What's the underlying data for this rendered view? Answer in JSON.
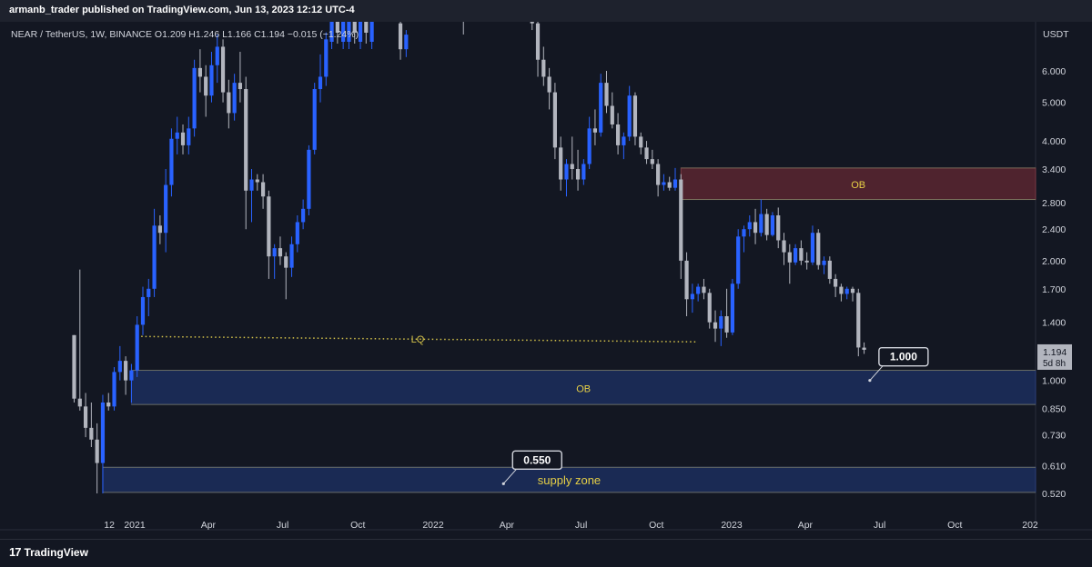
{
  "header": {
    "published": "armanb_trader published on TradingView.com, Jun 13, 2023 12:12 UTC-4"
  },
  "symbol_line": "NEAR / TetherUS, 1W, BINANCE  O1.209  H1.246  L1.166  C1.194  −0.015 (−1.24%)",
  "footer": {
    "logo_mark": "17",
    "logo_text": "TradingView"
  },
  "colors": {
    "up": "#2962ff",
    "down": "#b2b5be",
    "background": "#131722",
    "ob_red": "#5a2630",
    "ob_blue": "#1c2c5a",
    "lq": "#d4c24a"
  },
  "chart_data": {
    "type": "candlestick",
    "symbol": "NEAR / TetherUS",
    "interval": "1W",
    "exchange": "BINANCE",
    "scale": "log",
    "currency": "USDT",
    "ylim": [
      0.47,
      7.6
    ],
    "y_ticks": [
      "6.000",
      "5.000",
      "4.000",
      "3.400",
      "2.800",
      "2.400",
      "2.000",
      "1.700",
      "1.400",
      "1.000",
      "0.850",
      "0.730",
      "0.610",
      "0.520"
    ],
    "y_tick_values": [
      6,
      5,
      4,
      3.4,
      2.8,
      2.4,
      2,
      1.7,
      1.4,
      1.0,
      0.85,
      0.73,
      0.61,
      0.52
    ],
    "x_ticks": [
      "12",
      "2021",
      "Apr",
      "Jul",
      "Oct",
      "2022",
      "Apr",
      "Jul",
      "Oct",
      "2023",
      "Apr",
      "Jul",
      "Oct",
      "202"
    ],
    "x_tick_dates": [
      "2020-12-01",
      "2021-01-01",
      "2021-04-01",
      "2021-07-01",
      "2021-10-01",
      "2022-01-01",
      "2022-04-01",
      "2022-07-01",
      "2022-10-01",
      "2023-01-01",
      "2023-04-01",
      "2023-07-01",
      "2023-10-01",
      "2024-01-01"
    ],
    "currency_label": "USDT",
    "last_price": {
      "value": 1.194,
      "label": "1.194",
      "countdown": "5d 8h"
    },
    "zones": [
      {
        "label": "OB",
        "from": 2.85,
        "to": 3.42,
        "start": "2022-10-31",
        "color": "red"
      },
      {
        "label": "OB",
        "from": 0.87,
        "to": 1.06,
        "start": "2020-12-28",
        "color": "blue"
      },
      {
        "label": "supply zone",
        "from": 0.523,
        "to": 0.605,
        "start": "2020-11-23",
        "color": "blue"
      }
    ],
    "lines": [
      {
        "label": "LQ",
        "from_date": "2021-01-04",
        "from_price": 1.29,
        "to_date": "2022-11-21",
        "to_price": 1.25,
        "style": "dotted"
      }
    ],
    "callouts": [
      {
        "label": "1.000",
        "date": "2023-06-19",
        "price": 1.0
      },
      {
        "label": "0.550",
        "date": "2022-03-28",
        "price": 0.55
      }
    ],
    "candles": [
      {
        "t": "2020-10-19",
        "o": 1.3,
        "h": 1.3,
        "l": 0.88,
        "c": 0.9
      },
      {
        "t": "2020-10-26",
        "o": 0.9,
        "h": 1.9,
        "l": 0.84,
        "c": 0.86
      },
      {
        "t": "2020-11-02",
        "o": 0.86,
        "h": 0.93,
        "l": 0.72,
        "c": 0.76
      },
      {
        "t": "2020-11-09",
        "o": 0.76,
        "h": 0.88,
        "l": 0.68,
        "c": 0.71
      },
      {
        "t": "2020-11-16",
        "o": 0.71,
        "h": 0.78,
        "l": 0.52,
        "c": 0.62
      },
      {
        "t": "2020-11-23",
        "o": 0.62,
        "h": 0.92,
        "l": 0.52,
        "c": 0.88
      },
      {
        "t": "2020-11-30",
        "o": 0.88,
        "h": 0.93,
        "l": 0.84,
        "c": 0.86
      },
      {
        "t": "2020-12-07",
        "o": 0.86,
        "h": 1.08,
        "l": 0.84,
        "c": 1.05
      },
      {
        "t": "2020-12-14",
        "o": 1.05,
        "h": 1.22,
        "l": 1.0,
        "c": 1.12
      },
      {
        "t": "2020-12-21",
        "o": 1.12,
        "h": 1.15,
        "l": 0.92,
        "c": 1.0
      },
      {
        "t": "2020-12-28",
        "o": 1.0,
        "h": 1.1,
        "l": 0.88,
        "c": 1.06
      },
      {
        "t": "2021-01-04",
        "o": 1.06,
        "h": 1.45,
        "l": 1.02,
        "c": 1.38
      },
      {
        "t": "2021-01-11",
        "o": 1.38,
        "h": 1.72,
        "l": 1.3,
        "c": 1.62
      },
      {
        "t": "2021-01-18",
        "o": 1.62,
        "h": 1.8,
        "l": 1.45,
        "c": 1.7
      },
      {
        "t": "2021-01-25",
        "o": 1.7,
        "h": 2.7,
        "l": 1.62,
        "c": 2.45
      },
      {
        "t": "2021-02-01",
        "o": 2.45,
        "h": 2.6,
        "l": 2.2,
        "c": 2.35
      },
      {
        "t": "2021-02-08",
        "o": 2.35,
        "h": 3.4,
        "l": 2.1,
        "c": 3.1
      },
      {
        "t": "2021-02-15",
        "o": 3.1,
        "h": 4.3,
        "l": 2.9,
        "c": 4.05
      },
      {
        "t": "2021-02-22",
        "o": 4.05,
        "h": 4.6,
        "l": 3.7,
        "c": 4.2
      },
      {
        "t": "2021-03-01",
        "o": 4.2,
        "h": 4.4,
        "l": 3.7,
        "c": 3.9
      },
      {
        "t": "2021-03-08",
        "o": 3.9,
        "h": 4.6,
        "l": 3.7,
        "c": 4.3
      },
      {
        "t": "2021-03-15",
        "o": 4.3,
        "h": 6.4,
        "l": 4.1,
        "c": 6.1
      },
      {
        "t": "2021-03-22",
        "o": 6.1,
        "h": 6.8,
        "l": 5.3,
        "c": 5.8
      },
      {
        "t": "2021-03-29",
        "o": 5.8,
        "h": 6.2,
        "l": 4.6,
        "c": 5.2
      },
      {
        "t": "2021-04-05",
        "o": 5.2,
        "h": 6.7,
        "l": 5.0,
        "c": 6.2
      },
      {
        "t": "2021-04-12",
        "o": 6.2,
        "h": 7.4,
        "l": 5.6,
        "c": 6.9
      },
      {
        "t": "2021-04-19",
        "o": 6.9,
        "h": 7.2,
        "l": 5.0,
        "c": 5.3
      },
      {
        "t": "2021-04-26",
        "o": 5.3,
        "h": 5.7,
        "l": 4.3,
        "c": 4.7
      },
      {
        "t": "2021-05-03",
        "o": 4.7,
        "h": 5.9,
        "l": 4.5,
        "c": 5.6
      },
      {
        "t": "2021-05-10",
        "o": 5.6,
        "h": 6.7,
        "l": 5.0,
        "c": 5.4
      },
      {
        "t": "2021-05-17",
        "o": 5.4,
        "h": 5.8,
        "l": 2.4,
        "c": 3.0
      },
      {
        "t": "2021-05-24",
        "o": 3.0,
        "h": 3.4,
        "l": 2.5,
        "c": 3.2
      },
      {
        "t": "2021-05-31",
        "o": 3.2,
        "h": 3.3,
        "l": 3.0,
        "c": 3.15
      },
      {
        "t": "2021-06-07",
        "o": 3.15,
        "h": 3.3,
        "l": 2.7,
        "c": 2.9
      },
      {
        "t": "2021-06-14",
        "o": 2.9,
        "h": 3.0,
        "l": 1.8,
        "c": 2.05
      },
      {
        "t": "2021-06-21",
        "o": 2.05,
        "h": 2.2,
        "l": 1.8,
        "c": 2.15
      },
      {
        "t": "2021-06-28",
        "o": 2.15,
        "h": 2.3,
        "l": 1.95,
        "c": 2.05
      },
      {
        "t": "2021-07-05",
        "o": 2.05,
        "h": 2.1,
        "l": 1.6,
        "c": 1.92
      },
      {
        "t": "2021-07-12",
        "o": 1.92,
        "h": 2.3,
        "l": 1.82,
        "c": 2.2
      },
      {
        "t": "2021-07-19",
        "o": 2.2,
        "h": 2.6,
        "l": 2.1,
        "c": 2.5
      },
      {
        "t": "2021-07-26",
        "o": 2.5,
        "h": 2.85,
        "l": 2.4,
        "c": 2.7
      },
      {
        "t": "2021-08-02",
        "o": 2.7,
        "h": 3.9,
        "l": 2.6,
        "c": 3.8
      },
      {
        "t": "2021-08-09",
        "o": 3.8,
        "h": 5.6,
        "l": 3.7,
        "c": 5.4
      },
      {
        "t": "2021-08-16",
        "o": 5.4,
        "h": 6.6,
        "l": 5.0,
        "c": 5.8
      },
      {
        "t": "2021-08-23",
        "o": 5.8,
        "h": 7.5,
        "l": 5.5,
        "c": 7.2
      }
    ],
    "candles_hidden_top": [
      {
        "t": "2021-08-30",
        "dir": "up"
      },
      {
        "t": "2021-09-06",
        "dir": "down"
      },
      {
        "t": "2021-09-13",
        "dir": "up"
      },
      {
        "t": "2021-09-20",
        "dir": "up"
      },
      {
        "t": "2021-09-27",
        "dir": "down"
      },
      {
        "t": "2021-10-04",
        "dir": "up"
      },
      {
        "t": "2021-10-11",
        "dir": "down"
      },
      {
        "t": "2021-10-18",
        "dir": "up"
      }
    ],
    "candles_2": [
      {
        "t": "2021-11-22",
        "o": 7.9,
        "h": 8.4,
        "l": 6.4,
        "c": 6.8
      },
      {
        "t": "2021-11-29",
        "o": 6.8,
        "h": 7.6,
        "l": 6.5,
        "c": 7.4
      },
      {
        "t": "2022-05-02",
        "o": 9.0,
        "h": 9.5,
        "l": 7.6,
        "c": 7.9
      },
      {
        "t": "2022-05-09",
        "o": 7.9,
        "h": 8.2,
        "l": 5.8,
        "c": 6.4
      },
      {
        "t": "2022-05-16",
        "o": 6.4,
        "h": 6.9,
        "l": 5.5,
        "c": 5.8
      },
      {
        "t": "2022-05-23",
        "o": 5.8,
        "h": 6.1,
        "l": 4.8,
        "c": 5.3
      },
      {
        "t": "2022-05-30",
        "o": 5.3,
        "h": 5.6,
        "l": 3.6,
        "c": 3.85
      },
      {
        "t": "2022-06-06",
        "o": 3.85,
        "h": 4.1,
        "l": 3.0,
        "c": 3.2
      },
      {
        "t": "2022-06-13",
        "o": 3.2,
        "h": 3.6,
        "l": 2.9,
        "c": 3.5
      },
      {
        "t": "2022-06-20",
        "o": 3.5,
        "h": 4.1,
        "l": 3.2,
        "c": 3.4
      },
      {
        "t": "2022-06-27",
        "o": 3.4,
        "h": 3.8,
        "l": 3.0,
        "c": 3.2
      },
      {
        "t": "2022-07-04",
        "o": 3.2,
        "h": 3.6,
        "l": 3.1,
        "c": 3.5
      },
      {
        "t": "2022-07-11",
        "o": 3.5,
        "h": 4.6,
        "l": 3.4,
        "c": 4.3
      },
      {
        "t": "2022-07-18",
        "o": 4.3,
        "h": 4.8,
        "l": 3.9,
        "c": 4.2
      },
      {
        "t": "2022-07-25",
        "o": 4.2,
        "h": 5.9,
        "l": 4.1,
        "c": 5.6
      },
      {
        "t": "2022-08-01",
        "o": 5.6,
        "h": 6.0,
        "l": 4.7,
        "c": 4.9
      },
      {
        "t": "2022-08-08",
        "o": 4.9,
        "h": 5.3,
        "l": 4.3,
        "c": 4.4
      },
      {
        "t": "2022-08-15",
        "o": 4.4,
        "h": 4.7,
        "l": 3.7,
        "c": 3.9
      },
      {
        "t": "2022-08-22",
        "o": 3.9,
        "h": 4.2,
        "l": 3.6,
        "c": 4.1
      },
      {
        "t": "2022-08-29",
        "o": 4.1,
        "h": 5.5,
        "l": 4.0,
        "c": 5.2
      },
      {
        "t": "2022-09-05",
        "o": 5.2,
        "h": 5.3,
        "l": 3.9,
        "c": 4.1
      },
      {
        "t": "2022-09-12",
        "o": 4.1,
        "h": 4.2,
        "l": 3.7,
        "c": 3.85
      },
      {
        "t": "2022-09-19",
        "o": 3.85,
        "h": 4.0,
        "l": 3.5,
        "c": 3.6
      },
      {
        "t": "2022-09-26",
        "o": 3.6,
        "h": 3.8,
        "l": 3.4,
        "c": 3.5
      },
      {
        "t": "2022-10-03",
        "o": 3.5,
        "h": 3.6,
        "l": 2.9,
        "c": 3.1
      },
      {
        "t": "2022-10-10",
        "o": 3.1,
        "h": 3.3,
        "l": 3.0,
        "c": 3.15
      },
      {
        "t": "2022-10-17",
        "o": 3.15,
        "h": 3.25,
        "l": 3.0,
        "c": 3.05
      },
      {
        "t": "2022-10-24",
        "o": 3.05,
        "h": 3.42,
        "l": 3.0,
        "c": 3.2
      },
      {
        "t": "2022-10-31",
        "o": 3.2,
        "h": 3.3,
        "l": 1.8,
        "c": 2.0
      },
      {
        "t": "2022-11-07",
        "o": 2.0,
        "h": 2.1,
        "l": 1.45,
        "c": 1.6
      },
      {
        "t": "2022-11-14",
        "o": 1.6,
        "h": 1.75,
        "l": 1.48,
        "c": 1.65
      },
      {
        "t": "2022-11-21",
        "o": 1.65,
        "h": 1.75,
        "l": 1.58,
        "c": 1.72
      },
      {
        "t": "2022-11-28",
        "o": 1.72,
        "h": 1.8,
        "l": 1.6,
        "c": 1.66
      },
      {
        "t": "2022-12-05",
        "o": 1.66,
        "h": 1.7,
        "l": 1.35,
        "c": 1.4
      },
      {
        "t": "2022-12-12",
        "o": 1.4,
        "h": 1.5,
        "l": 1.25,
        "c": 1.35
      },
      {
        "t": "2022-12-19",
        "o": 1.35,
        "h": 1.5,
        "l": 1.22,
        "c": 1.45
      },
      {
        "t": "2022-12-26",
        "o": 1.45,
        "h": 1.7,
        "l": 1.28,
        "c": 1.32
      },
      {
        "t": "2023-01-02",
        "o": 1.32,
        "h": 1.8,
        "l": 1.3,
        "c": 1.75
      },
      {
        "t": "2023-01-09",
        "o": 1.75,
        "h": 2.4,
        "l": 1.7,
        "c": 2.3
      },
      {
        "t": "2023-01-16",
        "o": 2.3,
        "h": 2.45,
        "l": 2.1,
        "c": 2.4
      },
      {
        "t": "2023-01-23",
        "o": 2.4,
        "h": 2.6,
        "l": 2.3,
        "c": 2.5
      },
      {
        "t": "2023-01-30",
        "o": 2.5,
        "h": 2.7,
        "l": 2.2,
        "c": 2.35
      },
      {
        "t": "2023-02-06",
        "o": 2.35,
        "h": 2.85,
        "l": 2.3,
        "c": 2.62
      },
      {
        "t": "2023-02-13",
        "o": 2.62,
        "h": 2.7,
        "l": 2.25,
        "c": 2.32
      },
      {
        "t": "2023-02-20",
        "o": 2.32,
        "h": 2.65,
        "l": 2.3,
        "c": 2.6
      },
      {
        "t": "2023-02-27",
        "o": 2.6,
        "h": 2.72,
        "l": 2.15,
        "c": 2.25
      },
      {
        "t": "2023-03-06",
        "o": 2.25,
        "h": 2.35,
        "l": 1.95,
        "c": 2.1
      },
      {
        "t": "2023-03-13",
        "o": 2.1,
        "h": 2.2,
        "l": 1.75,
        "c": 1.98
      },
      {
        "t": "2023-03-20",
        "o": 1.98,
        "h": 2.2,
        "l": 1.95,
        "c": 2.15
      },
      {
        "t": "2023-03-27",
        "o": 2.15,
        "h": 2.25,
        "l": 1.95,
        "c": 2.0
      },
      {
        "t": "2023-04-03",
        "o": 2.0,
        "h": 2.1,
        "l": 1.9,
        "c": 1.98
      },
      {
        "t": "2023-04-10",
        "o": 1.98,
        "h": 2.45,
        "l": 1.95,
        "c": 2.35
      },
      {
        "t": "2023-04-17",
        "o": 2.35,
        "h": 2.4,
        "l": 1.9,
        "c": 1.95
      },
      {
        "t": "2023-04-24",
        "o": 1.95,
        "h": 2.05,
        "l": 1.85,
        "c": 2.0
      },
      {
        "t": "2023-05-01",
        "o": 2.0,
        "h": 2.05,
        "l": 1.75,
        "c": 1.8
      },
      {
        "t": "2023-05-08",
        "o": 1.8,
        "h": 1.85,
        "l": 1.62,
        "c": 1.72
      },
      {
        "t": "2023-05-15",
        "o": 1.72,
        "h": 1.75,
        "l": 1.58,
        "c": 1.65
      },
      {
        "t": "2023-05-22",
        "o": 1.65,
        "h": 1.72,
        "l": 1.6,
        "c": 1.7
      },
      {
        "t": "2023-05-29",
        "o": 1.7,
        "h": 1.72,
        "l": 1.58,
        "c": 1.66
      },
      {
        "t": "2023-06-05",
        "o": 1.66,
        "h": 1.7,
        "l": 1.15,
        "c": 1.21
      },
      {
        "t": "2023-06-12",
        "o": 1.209,
        "h": 1.246,
        "l": 1.166,
        "c": 1.194
      }
    ]
  }
}
